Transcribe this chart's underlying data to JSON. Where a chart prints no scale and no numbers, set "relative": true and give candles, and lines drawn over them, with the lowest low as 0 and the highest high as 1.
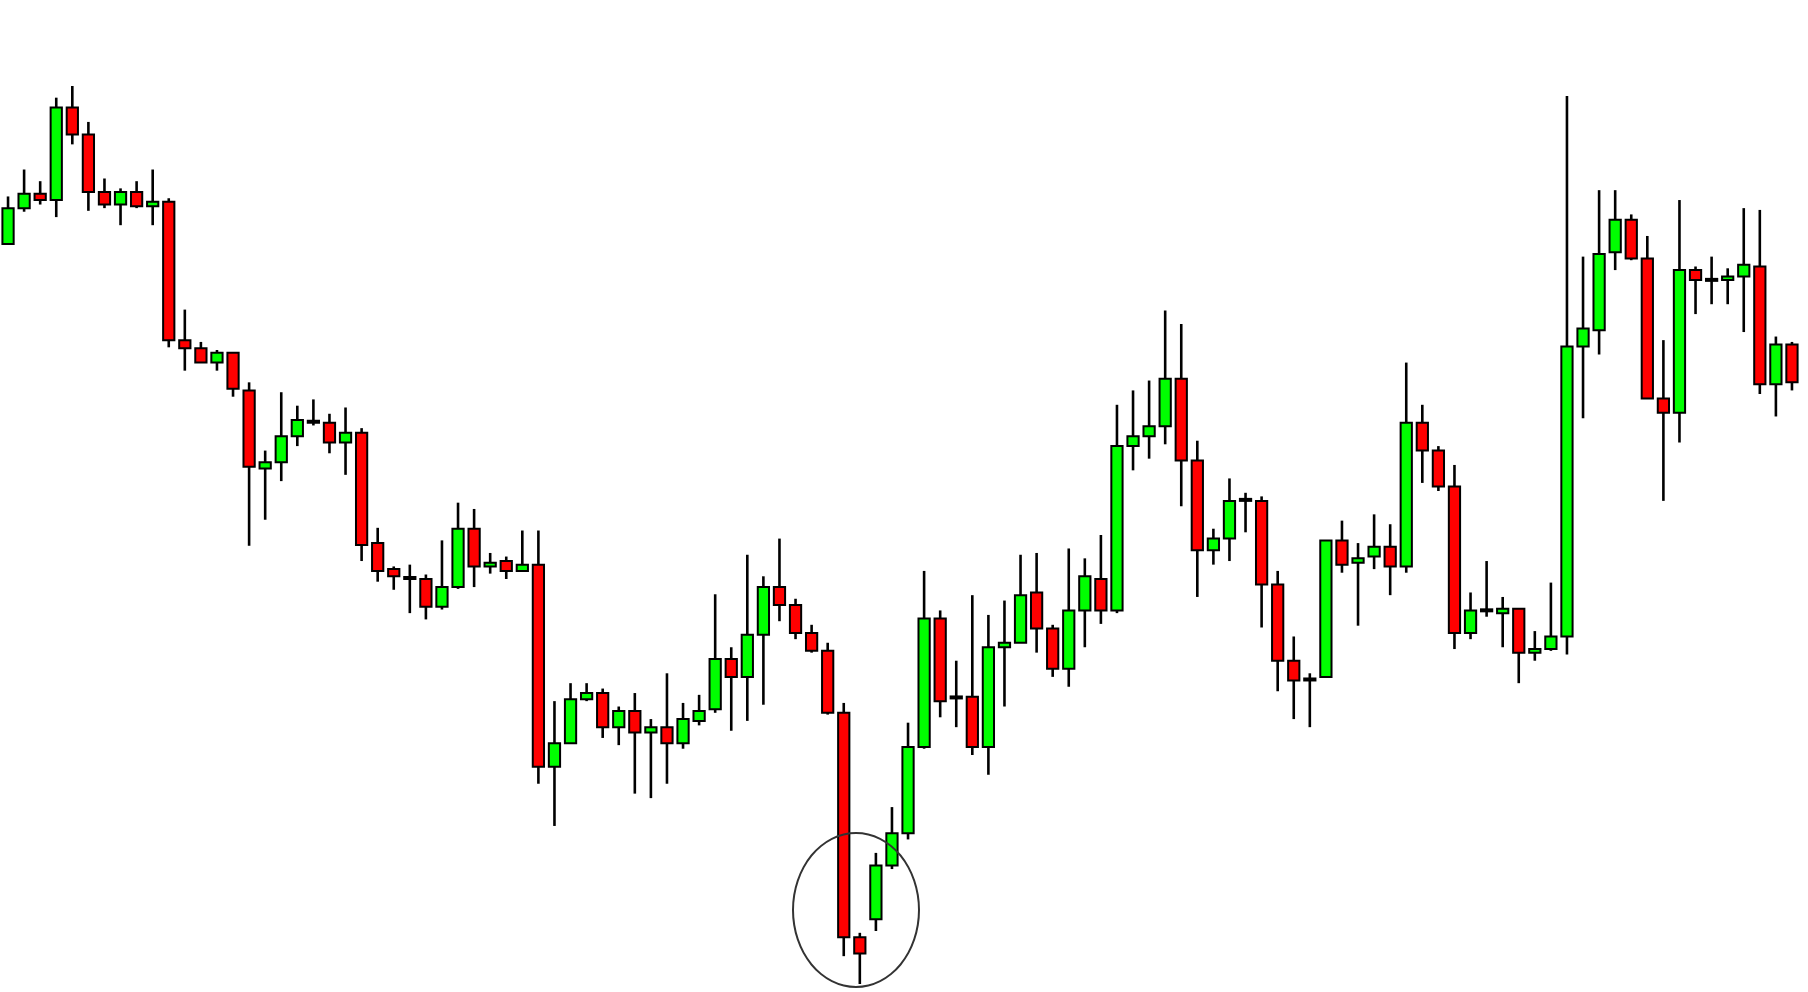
{
  "chart_data": {
    "type": "candlestick",
    "relative": true,
    "categories": [
      null,
      null,
      null,
      null,
      null,
      null,
      null,
      null,
      null,
      null,
      null,
      null,
      null,
      null,
      null,
      null,
      null,
      null,
      null,
      null,
      null,
      null,
      null,
      null,
      null,
      null,
      null,
      null,
      null,
      null,
      null,
      null,
      null,
      null,
      null,
      null,
      null,
      null,
      null,
      null,
      null,
      null,
      null,
      null,
      null,
      null,
      null,
      null,
      null,
      null,
      null,
      null,
      null,
      null,
      null,
      null,
      null,
      null,
      null,
      null,
      null,
      null,
      null,
      null,
      null,
      null,
      null,
      null,
      null,
      null,
      null,
      null,
      null,
      null,
      null,
      null,
      null,
      null,
      null,
      null,
      null,
      null,
      null,
      null,
      null,
      null,
      null,
      null,
      null,
      null,
      null,
      null,
      null,
      null,
      null,
      null,
      null,
      null,
      null,
      null,
      null,
      null,
      null,
      null,
      null,
      null,
      null,
      null,
      null,
      null,
      null,
      null
    ],
    "ohlc": [
      [
        0.824,
        0.877,
        0.824,
        0.864
      ],
      [
        0.864,
        0.907,
        0.86,
        0.88
      ],
      [
        0.88,
        0.894,
        0.868,
        0.873
      ],
      [
        0.873,
        0.987,
        0.854,
        0.976
      ],
      [
        0.976,
        1,
        0.935,
        0.946
      ],
      [
        0.946,
        0.96,
        0.861,
        0.882
      ],
      [
        0.882,
        0.897,
        0.864,
        0.868
      ],
      [
        0.868,
        0.886,
        0.845,
        0.882
      ],
      [
        0.882,
        0.894,
        0.864,
        0.866
      ],
      [
        0.866,
        0.907,
        0.845,
        0.871
      ],
      [
        0.871,
        0.875,
        0.709,
        0.717
      ],
      [
        0.717,
        0.751,
        0.683,
        0.708
      ],
      [
        0.708,
        0.715,
        0.692,
        0.692
      ],
      [
        0.692,
        0.706,
        0.683,
        0.703
      ],
      [
        0.703,
        0.703,
        0.654,
        0.663
      ],
      [
        0.661,
        0.67,
        0.488,
        0.576
      ],
      [
        0.574,
        0.594,
        0.517,
        0.581
      ],
      [
        0.581,
        0.659,
        0.56,
        0.61
      ],
      [
        0.61,
        0.644,
        0.599,
        0.628
      ],
      [
        0.625,
        0.651,
        0.622,
        0.627
      ],
      [
        0.625,
        0.635,
        0.591,
        0.603
      ],
      [
        0.603,
        0.642,
        0.567,
        0.614
      ],
      [
        0.614,
        0.619,
        0.471,
        0.489
      ],
      [
        0.491,
        0.508,
        0.448,
        0.46
      ],
      [
        0.462,
        0.465,
        0.439,
        0.454
      ],
      [
        0.451,
        0.467,
        0.413,
        0.451
      ],
      [
        0.451,
        0.456,
        0.406,
        0.42
      ],
      [
        0.42,
        0.494,
        0.417,
        0.442
      ],
      [
        0.442,
        0.536,
        0.44,
        0.507
      ],
      [
        0.507,
        0.529,
        0.442,
        0.465
      ],
      [
        0.465,
        0.48,
        0.457,
        0.469
      ],
      [
        0.471,
        0.476,
        0.451,
        0.46
      ],
      [
        0.46,
        0.505,
        0.46,
        0.467
      ],
      [
        0.467,
        0.505,
        0.223,
        0.242
      ],
      [
        0.242,
        0.315,
        0.176,
        0.268
      ],
      [
        0.268,
        0.335,
        0.268,
        0.317
      ],
      [
        0.317,
        0.335,
        0.315,
        0.324
      ],
      [
        0.324,
        0.329,
        0.274,
        0.286
      ],
      [
        0.286,
        0.309,
        0.266,
        0.304
      ],
      [
        0.304,
        0.324,
        0.212,
        0.28
      ],
      [
        0.28,
        0.295,
        0.207,
        0.286
      ],
      [
        0.286,
        0.346,
        0.223,
        0.268
      ],
      [
        0.268,
        0.313,
        0.262,
        0.295
      ],
      [
        0.293,
        0.322,
        0.288,
        0.304
      ],
      [
        0.306,
        0.434,
        0.302,
        0.362
      ],
      [
        0.362,
        0.375,
        0.282,
        0.342
      ],
      [
        0.342,
        0.478,
        0.293,
        0.389
      ],
      [
        0.389,
        0.454,
        0.311,
        0.442
      ],
      [
        0.442,
        0.496,
        0.404,
        0.422
      ],
      [
        0.422,
        0.429,
        0.384,
        0.391
      ],
      [
        0.391,
        0.4,
        0.369,
        0.371
      ],
      [
        0.371,
        0.38,
        0.3,
        0.302
      ],
      [
        0.302,
        0.313,
        0.031,
        0.052
      ],
      [
        0.052,
        0.057,
        0,
        0.034
      ],
      [
        0.072,
        0.146,
        0.059,
        0.132
      ],
      [
        0.132,
        0.197,
        0.128,
        0.168
      ],
      [
        0.168,
        0.291,
        0.161,
        0.264
      ],
      [
        0.264,
        0.46,
        0.262,
        0.407
      ],
      [
        0.407,
        0.416,
        0.297,
        0.315
      ],
      [
        0.318,
        0.36,
        0.286,
        0.318
      ],
      [
        0.32,
        0.433,
        0.255,
        0.264
      ],
      [
        0.264,
        0.411,
        0.233,
        0.375
      ],
      [
        0.375,
        0.427,
        0.309,
        0.38
      ],
      [
        0.38,
        0.478,
        0.38,
        0.433
      ],
      [
        0.436,
        0.48,
        0.369,
        0.396
      ],
      [
        0.396,
        0.4,
        0.342,
        0.351
      ],
      [
        0.351,
        0.485,
        0.331,
        0.416
      ],
      [
        0.416,
        0.474,
        0.375,
        0.454
      ],
      [
        0.451,
        0.5,
        0.401,
        0.416
      ],
      [
        0.416,
        0.645,
        0.413,
        0.599
      ],
      [
        0.599,
        0.661,
        0.572,
        0.61
      ],
      [
        0.61,
        0.672,
        0.585,
        0.621
      ],
      [
        0.621,
        0.75,
        0.601,
        0.674
      ],
      [
        0.674,
        0.735,
        0.532,
        0.583
      ],
      [
        0.583,
        0.605,
        0.431,
        0.483
      ],
      [
        0.483,
        0.507,
        0.467,
        0.496
      ],
      [
        0.496,
        0.563,
        0.471,
        0.538
      ],
      [
        0.538,
        0.547,
        0.503,
        0.538
      ],
      [
        0.538,
        0.543,
        0.397,
        0.445
      ],
      [
        0.445,
        0.46,
        0.326,
        0.36
      ],
      [
        0.36,
        0.387,
        0.295,
        0.338
      ],
      [
        0.338,
        0.346,
        0.286,
        0.338
      ],
      [
        0.342,
        0.494,
        0.342,
        0.494
      ],
      [
        0.494,
        0.516,
        0.458,
        0.467
      ],
      [
        0.469,
        0.491,
        0.399,
        0.474
      ],
      [
        0.476,
        0.523,
        0.462,
        0.487
      ],
      [
        0.487,
        0.512,
        0.433,
        0.465
      ],
      [
        0.465,
        0.692,
        0.458,
        0.625
      ],
      [
        0.625,
        0.645,
        0.558,
        0.594
      ],
      [
        0.594,
        0.599,
        0.549,
        0.554
      ],
      [
        0.554,
        0.578,
        0.373,
        0.391
      ],
      [
        0.391,
        0.436,
        0.384,
        0.416
      ],
      [
        0.415,
        0.471,
        0.409,
        0.415
      ],
      [
        0.413,
        0.431,
        0.375,
        0.418
      ],
      [
        0.418,
        0.418,
        0.335,
        0.369
      ],
      [
        0.369,
        0.393,
        0.36,
        0.373
      ],
      [
        0.373,
        0.447,
        0.371,
        0.387
      ],
      [
        0.387,
        0.989,
        0.367,
        0.71
      ],
      [
        0.71,
        0.81,
        0.63,
        0.73
      ],
      [
        0.728,
        0.884,
        0.701,
        0.813
      ],
      [
        0.815,
        0.884,
        0.795,
        0.851
      ],
      [
        0.851,
        0.857,
        0.806,
        0.808
      ],
      [
        0.808,
        0.833,
        0.652,
        0.652
      ],
      [
        0.652,
        0.717,
        0.538,
        0.636
      ],
      [
        0.636,
        0.873,
        0.603,
        0.795
      ],
      [
        0.795,
        0.799,
        0.746,
        0.784
      ],
      [
        0.783,
        0.81,
        0.757,
        0.783
      ],
      [
        0.784,
        0.797,
        0.757,
        0.788
      ],
      [
        0.788,
        0.864,
        0.726,
        0.801
      ],
      [
        0.799,
        0.862,
        0.657,
        0.668
      ],
      [
        0.668,
        0.721,
        0.632,
        0.712
      ],
      [
        0.712,
        0.715,
        0.661,
        0.67
      ]
    ],
    "colors": [
      "#00ff00",
      "#00ff00",
      "#ff0000",
      "#00ff00",
      "#ff0000",
      "#ff0000",
      "#ff0000",
      "#00ff00",
      "#ff0000",
      "#00ff00",
      "#ff0000",
      "#ff0000",
      "#ff0000",
      "#00ff00",
      "#ff0000",
      "#ff0000",
      "#00ff00",
      "#00ff00",
      "#00ff00",
      "#00ff00",
      "#ff0000",
      "#00ff00",
      "#ff0000",
      "#ff0000",
      "#ff0000",
      "#00ff00",
      "#ff0000",
      "#00ff00",
      "#00ff00",
      "#ff0000",
      "#00ff00",
      "#ff0000",
      "#00ff00",
      "#ff0000",
      "#00ff00",
      "#00ff00",
      "#00ff00",
      "#ff0000",
      "#00ff00",
      "#ff0000",
      "#00ff00",
      "#ff0000",
      "#00ff00",
      "#00ff00",
      "#00ff00",
      "#ff0000",
      "#00ff00",
      "#00ff00",
      "#ff0000",
      "#ff0000",
      "#ff0000",
      "#ff0000",
      "#ff0000",
      "#ff0000",
      "#00ff00",
      "#00ff00",
      "#00ff00",
      "#00ff00",
      "#ff0000",
      "#00ff00",
      "#ff0000",
      "#00ff00",
      "#00ff00",
      "#00ff00",
      "#ff0000",
      "#ff0000",
      "#00ff00",
      "#00ff00",
      "#ff0000",
      "#00ff00",
      "#00ff00",
      "#00ff00",
      "#00ff00",
      "#ff0000",
      "#ff0000",
      "#00ff00",
      "#00ff00",
      "#00ff00",
      "#ff0000",
      "#ff0000",
      "#ff0000",
      "#00ff00",
      "#00ff00",
      "#ff0000",
      "#00ff00",
      "#00ff00",
      "#ff0000",
      "#00ff00",
      "#ff0000",
      "#ff0000",
      "#ff0000",
      "#00ff00",
      "#00ff00",
      "#00ff00",
      "#ff0000",
      "#00ff00",
      "#00ff00",
      "#00ff00",
      "#00ff00",
      "#00ff00",
      "#00ff00",
      "#ff0000",
      "#ff0000",
      "#ff0000",
      "#00ff00",
      "#ff0000",
      "#00ff00",
      "#00ff00",
      "#00ff00",
      "#ff0000",
      "#00ff00",
      "#ff0000"
    ]
  }
}
